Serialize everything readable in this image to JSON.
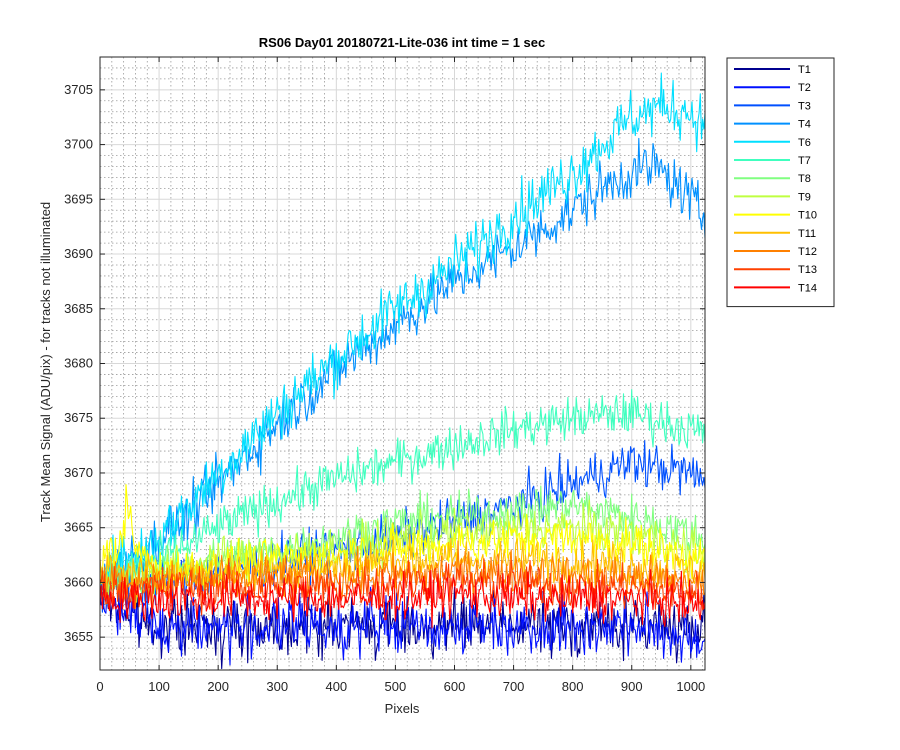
{
  "chart_data": {
    "type": "line",
    "title": "RS06 Day01 20180721-Lite-036 int time = 1 sec",
    "xlabel": "Pixels",
    "ylabel": "Track Mean Signal (ADU/pix) - for tracks not illuminated",
    "xlim": [
      0,
      1024
    ],
    "ylim": [
      3652,
      3708
    ],
    "xticks": [
      0,
      100,
      200,
      300,
      400,
      500,
      600,
      700,
      800,
      900,
      1000
    ],
    "yticks": [
      3655,
      3660,
      3665,
      3670,
      3675,
      3680,
      3685,
      3690,
      3695,
      3700,
      3705
    ],
    "grid": true,
    "minor_grid": true,
    "legend_position": "outside-right-top",
    "series": [
      {
        "name": "T1",
        "color": "#00008f",
        "x": [
          0,
          50,
          100,
          150,
          200,
          300,
          400,
          500,
          600,
          700,
          800,
          900,
          1000,
          1024
        ],
        "y": [
          3659,
          3657,
          3656,
          3656,
          3656,
          3656,
          3656,
          3656,
          3656,
          3656,
          3656,
          3656,
          3656,
          3656
        ]
      },
      {
        "name": "T2",
        "color": "#0010ff",
        "x": [
          0,
          50,
          100,
          150,
          200,
          300,
          400,
          500,
          600,
          700,
          800,
          900,
          1000,
          1024
        ],
        "y": [
          3659,
          3657,
          3656,
          3656,
          3656,
          3656,
          3656,
          3656,
          3656,
          3656,
          3656,
          3656,
          3655,
          3655
        ]
      },
      {
        "name": "T3",
        "color": "#0050ff",
        "x": [
          0,
          100,
          200,
          300,
          400,
          500,
          600,
          700,
          800,
          900,
          1000,
          1024
        ],
        "y": [
          3659,
          3660,
          3661,
          3662,
          3663,
          3664,
          3665.5,
          3667,
          3669,
          3671,
          3670,
          3669
        ]
      },
      {
        "name": "T4",
        "color": "#0090ff",
        "x": [
          0,
          50,
          100,
          150,
          200,
          300,
          400,
          500,
          600,
          700,
          800,
          850,
          900,
          940,
          980,
          1000,
          1024
        ],
        "y": [
          3660,
          3662,
          3664,
          3666,
          3669,
          3674.5,
          3679.5,
          3683.5,
          3687.5,
          3690.5,
          3694,
          3696,
          3697.5,
          3698,
          3696,
          3695,
          3693
        ]
      },
      {
        "name": "T6",
        "color": "#00dfff",
        "x": [
          0,
          50,
          100,
          150,
          200,
          300,
          400,
          500,
          600,
          700,
          800,
          850,
          900,
          950,
          1000,
          1024
        ],
        "y": [
          3661,
          3662,
          3664,
          3667,
          3670,
          3675.5,
          3680.5,
          3685,
          3689,
          3693.5,
          3697.5,
          3700,
          3702.5,
          3703.5,
          3703,
          3701.5
        ]
      },
      {
        "name": "T7",
        "color": "#40ffbf",
        "x": [
          0,
          100,
          200,
          300,
          400,
          500,
          600,
          700,
          800,
          900,
          1000,
          1024
        ],
        "y": [
          3660,
          3662,
          3665,
          3667.5,
          3669.5,
          3671,
          3672.5,
          3674,
          3675,
          3675.5,
          3674,
          3673.5
        ]
      },
      {
        "name": "T8",
        "color": "#80ff80",
        "x": [
          0,
          100,
          200,
          300,
          400,
          500,
          600,
          700,
          800,
          900,
          1000,
          1024
        ],
        "y": [
          3660,
          3661,
          3662,
          3663,
          3664,
          3665.5,
          3666,
          3666.5,
          3667,
          3666,
          3664.5,
          3664
        ]
      },
      {
        "name": "T9",
        "color": "#bfff40",
        "x": [
          0,
          100,
          200,
          300,
          400,
          500,
          600,
          700,
          800,
          900,
          1000,
          1024
        ],
        "y": [
          3660,
          3661,
          3662,
          3662.5,
          3663,
          3664,
          3664.5,
          3665,
          3665,
          3664.5,
          3663,
          3662.5
        ]
      },
      {
        "name": "T10",
        "color": "#ffff00",
        "x": [
          0,
          30,
          45,
          60,
          100,
          200,
          300,
          400,
          500,
          600,
          700,
          800,
          900,
          1000,
          1024
        ],
        "y": [
          3662,
          3663,
          3667,
          3663,
          3661,
          3661.5,
          3662,
          3662.5,
          3663,
          3663.5,
          3664,
          3664,
          3663.5,
          3662.5,
          3662
        ]
      },
      {
        "name": "T11",
        "color": "#ffbf00",
        "x": [
          0,
          100,
          200,
          300,
          400,
          500,
          600,
          700,
          800,
          900,
          1000,
          1024
        ],
        "y": [
          3661,
          3660.5,
          3661,
          3661,
          3661.5,
          3662,
          3662,
          3662,
          3662,
          3661.5,
          3661,
          3661
        ]
      },
      {
        "name": "T12",
        "color": "#ff8000",
        "x": [
          0,
          100,
          200,
          300,
          400,
          500,
          600,
          700,
          800,
          900,
          1000,
          1024
        ],
        "y": [
          3660,
          3660,
          3660,
          3660.5,
          3660.5,
          3660.5,
          3661,
          3661,
          3660.5,
          3660.5,
          3660,
          3660
        ]
      },
      {
        "name": "T13",
        "color": "#ff4000",
        "x": [
          0,
          100,
          200,
          300,
          400,
          500,
          600,
          700,
          800,
          900,
          1000,
          1024
        ],
        "y": [
          3659.5,
          3659.5,
          3659.5,
          3659.5,
          3659.5,
          3660,
          3660,
          3660,
          3659.5,
          3659.5,
          3659,
          3659
        ]
      },
      {
        "name": "T14",
        "color": "#ff0000",
        "x": [
          0,
          100,
          200,
          300,
          400,
          500,
          600,
          700,
          800,
          900,
          1000,
          1024
        ],
        "y": [
          3658.5,
          3658.5,
          3658.5,
          3658.5,
          3658.5,
          3658.5,
          3659,
          3658.5,
          3658.5,
          3658.5,
          3658,
          3658
        ]
      }
    ]
  }
}
